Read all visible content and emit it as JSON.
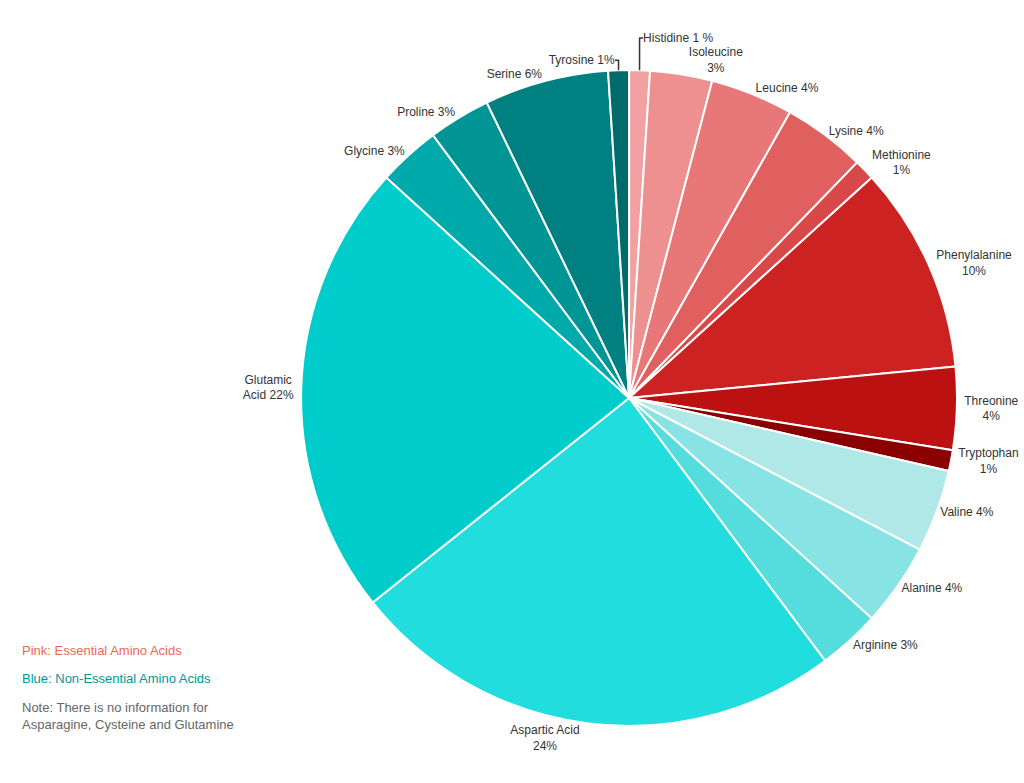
{
  "chart_data": {
    "type": "pie",
    "categories": [
      "Histidine 1 %",
      "Isoleucine\n3%",
      "Leucine 4%",
      "Lysine 4%",
      "Methionine\n1%",
      "Phenylalanine\n10%",
      "Threonine\n4%",
      "Tryptophan\n1%",
      "Valine 4%",
      "Alanine 4%",
      "Arginine 3%",
      "Aspartic Acid\n24%",
      "Glutamic\nAcid 22%",
      "Glycine 3%",
      "Proline 3%",
      "Serine 6%",
      "Tyrosine 1%"
    ],
    "values": [
      1,
      3,
      4,
      4,
      1,
      10,
      4,
      1,
      4,
      4,
      3,
      24,
      22,
      3,
      3,
      6,
      1
    ],
    "colors": [
      "#F2A0A0",
      "#EE9090",
      "#E87878",
      "#E06060",
      "#D84848",
      "#CC2222",
      "#BB1111",
      "#8B0000",
      "#B0E8E8",
      "#88E4E4",
      "#55DDDD",
      "#22DDDD",
      "#00CCCC",
      "#00AAAA",
      "#009595",
      "#008080",
      "#006B6B"
    ],
    "annotations": [
      {
        "text": "Pink: Essential Amino Acids",
        "color": "#EE6655"
      },
      {
        "text": "Blue: Non-Essential Amino Acids",
        "color": "#009999"
      },
      {
        "text": "Note: There is no information for\nAsparagine, Cysteine and Glutamine",
        "color": "#666666"
      }
    ]
  }
}
